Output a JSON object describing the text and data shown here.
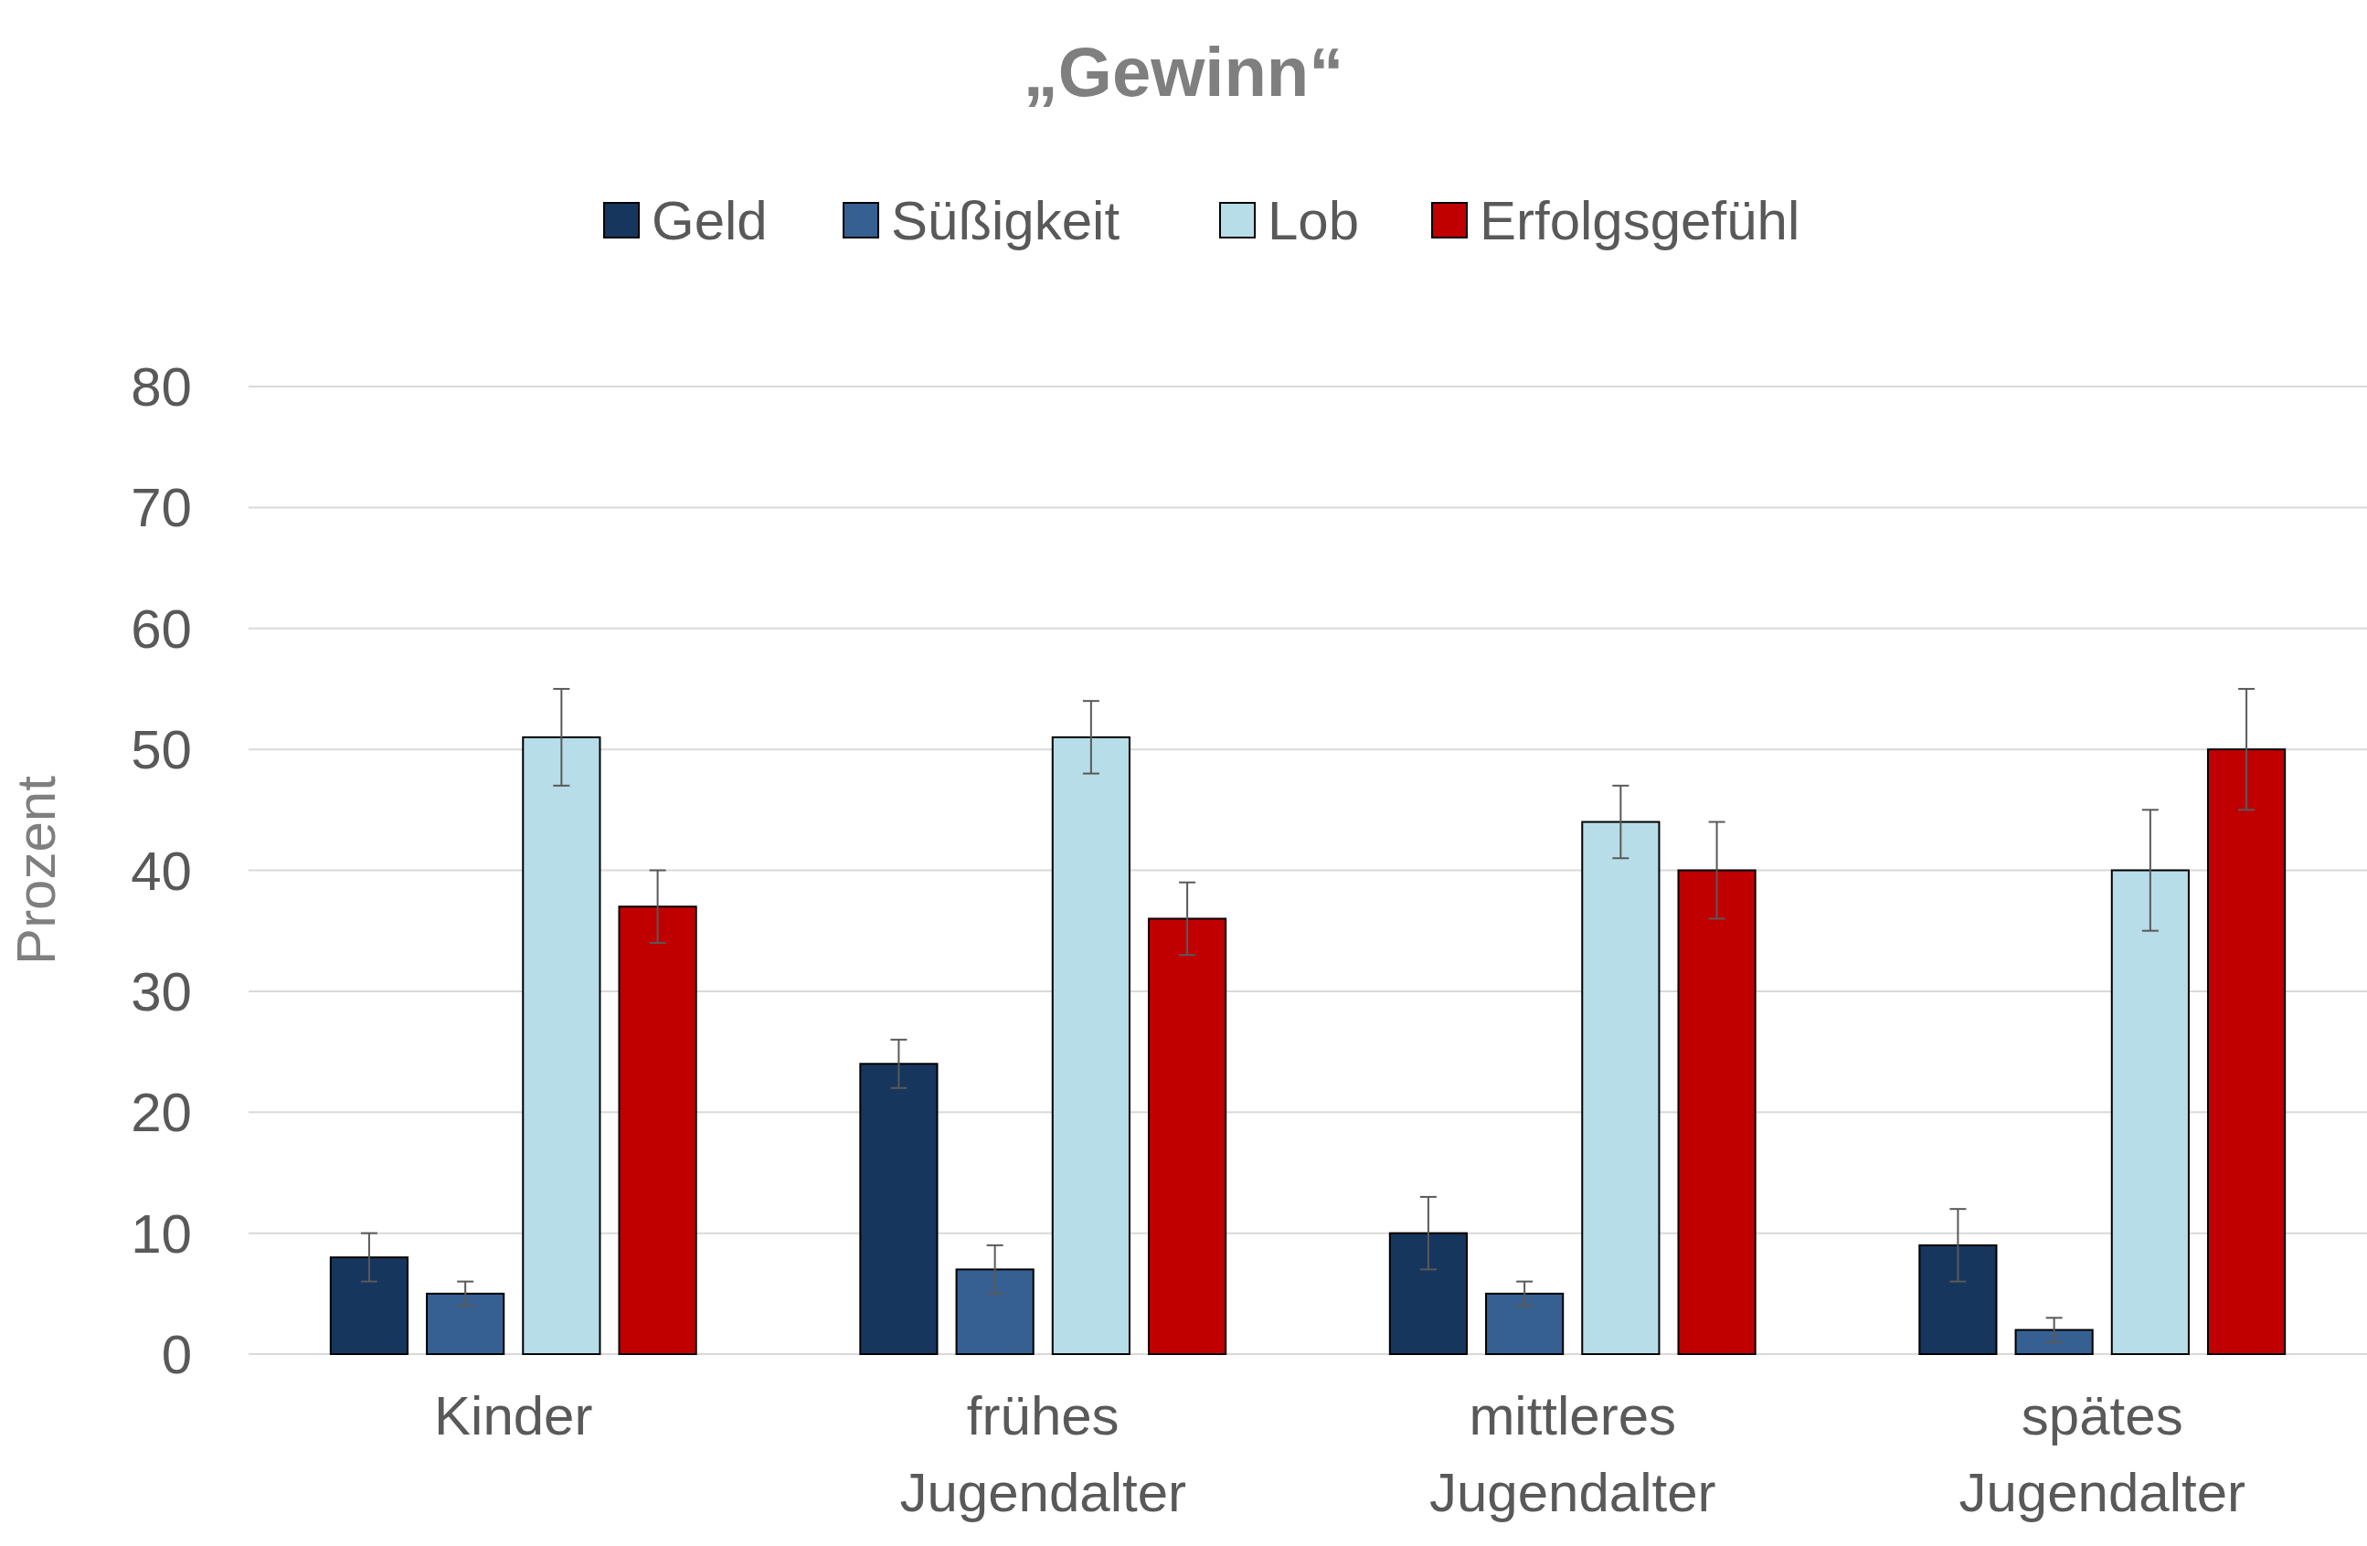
{
  "chart_data": {
    "type": "bar",
    "title": "„Gewinn“",
    "ylabel": "Prozent",
    "categories": [
      "Kinder",
      "frühes Jugendalter",
      "mittleres Jugendalter",
      "spätes Jugendalter"
    ],
    "series": [
      {
        "name": "Geld",
        "color": "#17365d",
        "values": [
          8,
          24,
          10,
          9
        ],
        "errors": [
          2,
          2,
          3,
          3
        ]
      },
      {
        "name": "Süßigkeit",
        "color": "#366092",
        "values": [
          5,
          7,
          5,
          2
        ],
        "errors": [
          1,
          2,
          1,
          1
        ]
      },
      {
        "name": "Lob",
        "color": "#b7dde8",
        "values": [
          51,
          51,
          44,
          40
        ],
        "errors": [
          4,
          3,
          3,
          5
        ]
      },
      {
        "name": "Erfolgsgefühl",
        "color": "#c00000",
        "values": [
          37,
          36,
          40,
          50
        ],
        "errors": [
          3,
          3,
          4,
          5
        ]
      }
    ],
    "ylim": [
      0,
      80
    ],
    "yticks": [
      0,
      10,
      20,
      30,
      40,
      50,
      60,
      70,
      80
    ],
    "grid": "y",
    "legend": "top"
  }
}
